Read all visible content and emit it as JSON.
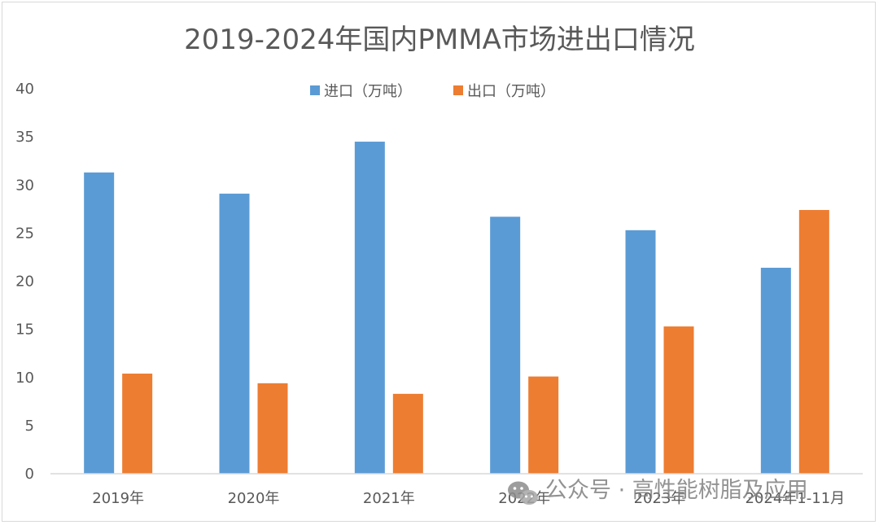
{
  "chart_data": {
    "type": "bar",
    "title": "2019-2024年国内PMMA市场进出口情况",
    "categories": [
      "2019年",
      "2020年",
      "2021年",
      "2022年",
      "2023年",
      "2024年1-11月"
    ],
    "series": [
      {
        "name": "进口（万吨）",
        "values": [
          31.3,
          29.1,
          34.5,
          26.7,
          25.3,
          21.4
        ],
        "color": "#5b9bd5"
      },
      {
        "name": "出口（万吨）",
        "values": [
          10.4,
          9.4,
          8.3,
          10.1,
          15.3,
          27.4
        ],
        "color": "#ed7d31"
      }
    ],
    "ylim": [
      0,
      40
    ],
    "yticks": [
      0,
      5,
      10,
      15,
      20,
      25,
      30,
      35,
      40
    ],
    "grid": false,
    "legend_position": "top-center"
  },
  "watermark": {
    "icon": "wechat-icon",
    "text": "公众号 · 高性能树脂及应用"
  }
}
